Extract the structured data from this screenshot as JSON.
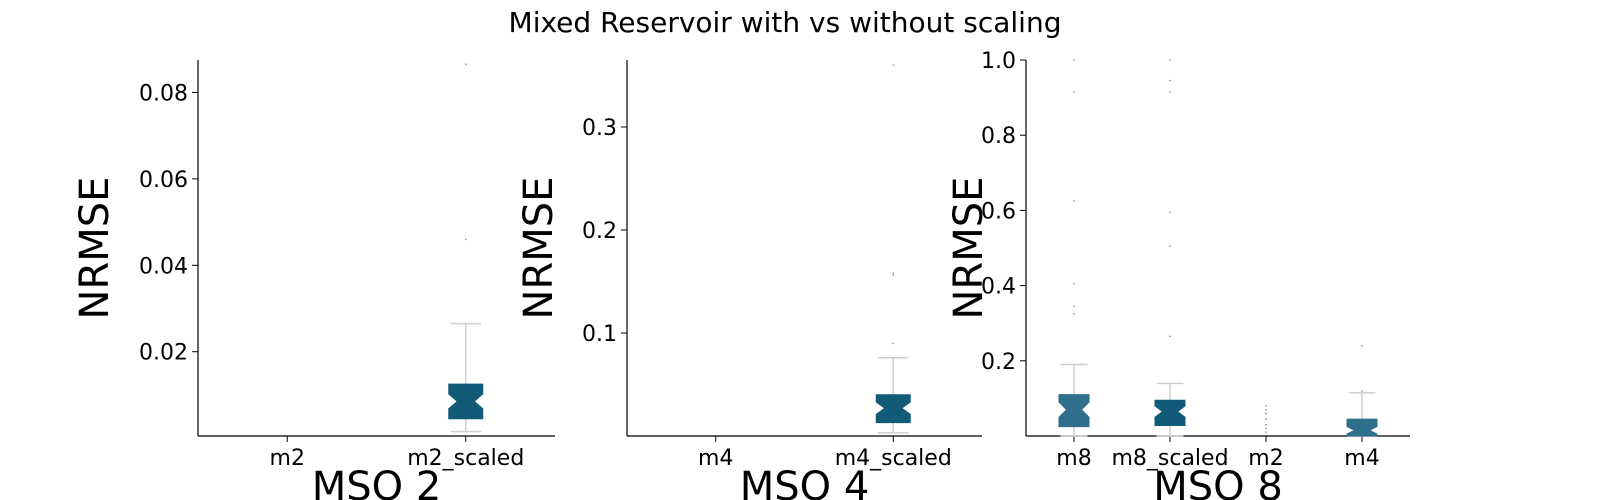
{
  "figure": {
    "title": "Mixed Reservoir with vs without scaling"
  },
  "colors": {
    "box": "#125b78",
    "box_light": "#2f6f8c",
    "whisker": "#cfcfcf",
    "axis": "#000000"
  },
  "chart_data": [
    {
      "type": "box",
      "xlabel": "MSO 2",
      "ylabel": "NRMSE",
      "ylim": [
        0.0005,
        0.0875
      ],
      "yticks": [
        0.02,
        0.04,
        0.06,
        0.08
      ],
      "ytick_labels": [
        "0.02",
        "0.04",
        "0.06",
        "0.08"
      ],
      "categories": [
        "m2",
        "m2_scaled"
      ],
      "boxes": [
        null,
        {
          "q1": 0.0045,
          "median": 0.0085,
          "q3": 0.0125,
          "notch_low": 0.0068,
          "notch_high": 0.0102,
          "whislo": 0.0015,
          "whishi": 0.0265,
          "fliers": [
            0.046,
            0.0865
          ]
        }
      ]
    },
    {
      "type": "box",
      "xlabel": "MSO 4",
      "ylabel": "NRMSE",
      "ylim": [
        0.0,
        0.365
      ],
      "yticks": [
        0.1,
        0.2,
        0.3
      ],
      "ytick_labels": [
        "0.1",
        "0.2",
        "0.3"
      ],
      "categories": [
        "m4",
        "m4_scaled"
      ],
      "boxes": [
        null,
        {
          "q1": 0.013,
          "median": 0.027,
          "q3": 0.04,
          "notch_low": 0.021,
          "notch_high": 0.033,
          "whislo": 0.003,
          "whishi": 0.076,
          "fliers": [
            0.09,
            0.156,
            0.158,
            0.36
          ]
        }
      ]
    },
    {
      "type": "box",
      "xlabel": "MSO 8",
      "ylabel": "NRMSE",
      "ylim": [
        0.0,
        1.0
      ],
      "yticks": [
        0.2,
        0.4,
        0.6,
        0.8,
        1.0
      ],
      "ytick_labels": [
        "0.2",
        "0.4",
        "0.6",
        "0.8",
        "1.0"
      ],
      "categories": [
        "m8",
        "m8_scaled",
        "m2",
        "m4"
      ],
      "boxes": [
        {
          "q1": 0.025,
          "median": 0.07,
          "q3": 0.11,
          "notch_low": 0.05,
          "notch_high": 0.09,
          "whislo": 0.0,
          "whishi": 0.19,
          "fliers": [
            0.325,
            0.345,
            0.405,
            0.625,
            0.915,
            1.0
          ]
        },
        {
          "q1": 0.028,
          "median": 0.065,
          "q3": 0.095,
          "notch_low": 0.05,
          "notch_high": 0.08,
          "whislo": 0.0,
          "whishi": 0.14,
          "fliers": [
            0.265,
            0.505,
            0.595,
            0.915,
            0.945,
            1.0
          ]
        },
        {
          "q1": null,
          "median": null,
          "q3": null,
          "notch_low": null,
          "notch_high": null,
          "whislo": null,
          "whishi": null,
          "fliers": [
            0.01,
            0.02,
            0.03,
            0.045,
            0.06,
            0.07,
            0.08
          ]
        },
        {
          "q1": 0.0,
          "median": 0.015,
          "q3": 0.045,
          "notch_low": 0.005,
          "notch_high": 0.025,
          "whislo": 0.0,
          "whishi": 0.115,
          "fliers": [
            0.12,
            0.24
          ]
        }
      ]
    }
  ]
}
